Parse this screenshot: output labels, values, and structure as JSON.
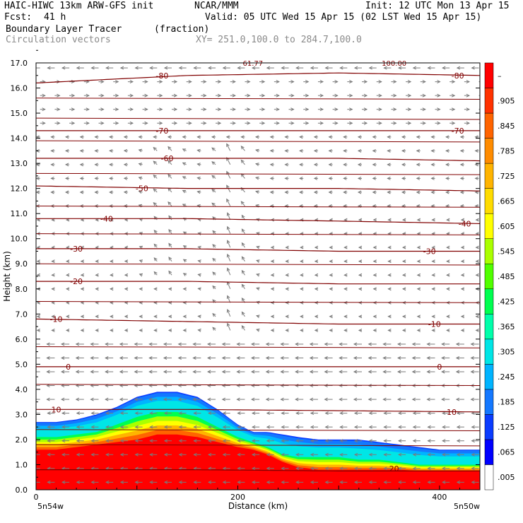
{
  "header": {
    "model": "HAIC-HIWC 13km ARW-GFS init",
    "org": "NCAR/MMM",
    "init": "Init: 12 UTC Mon 13 Apr 15",
    "fcst_label": "Fcst:",
    "fcst_value": "41 h",
    "valid": "Valid: 05 UTC Wed 15 Apr 15 (02 LST Wed 15 Apr 15)",
    "field": "Boundary Layer Tracer",
    "field_units": "(fraction)",
    "overlay": "Circulation vectors",
    "xy": "XY= 251.0,100.0 to 284.7,100.0"
  },
  "chart_data": {
    "type": "heatmap",
    "xlabel": "Distance (km)",
    "ylabel": "Height (km)",
    "xlim": [
      0,
      440
    ],
    "ylim": [
      0,
      17
    ],
    "x_ticks": [
      0,
      200,
      400
    ],
    "y_ticks": [
      "0.0",
      "1.0",
      "2.0",
      "3.0",
      "4.0",
      "5.0",
      "6.0",
      "7.0",
      "8.0",
      "9.0",
      "10.0",
      "11.0",
      "12.0",
      "13.0",
      "14.0",
      "15.0",
      "16.0",
      "17.0"
    ],
    "x_end_labels": {
      "left": "5n54w",
      "right": "5n50w"
    },
    "colorbar": {
      "labels": [
        ".005",
        ".065",
        ".125",
        ".185",
        ".245",
        ".305",
        ".365",
        ".425",
        ".485",
        ".545",
        ".605",
        ".665",
        ".725",
        ".785",
        ".845",
        ".905",
        "–"
      ],
      "colors": [
        "#ffffff",
        "#0000ff",
        "#0a3cff",
        "#1478ff",
        "#00b4ff",
        "#00e6e6",
        "#00ffaa",
        "#00ff50",
        "#50ff00",
        "#aaff00",
        "#ffff00",
        "#ffdc00",
        "#ffb400",
        "#ff8c00",
        "#ff6400",
        "#ff3200",
        "#ff0000"
      ]
    },
    "tracer_top_km": {
      "x": [
        0,
        20,
        40,
        60,
        80,
        100,
        120,
        140,
        160,
        180,
        200,
        215,
        230,
        245,
        260,
        280,
        300,
        320,
        340,
        360,
        380,
        400,
        420,
        440
      ],
      "top": [
        2.7,
        2.7,
        2.8,
        3.0,
        3.3,
        3.7,
        3.9,
        3.9,
        3.7,
        3.2,
        2.6,
        2.3,
        2.3,
        2.2,
        2.1,
        2.0,
        2.0,
        2.0,
        1.9,
        1.8,
        1.7,
        1.6,
        1.6,
        1.6
      ],
      "mid": [
        2.1,
        2.1,
        2.2,
        2.3,
        2.6,
        2.9,
        3.1,
        3.1,
        2.9,
        2.5,
        2.1,
        1.9,
        1.7,
        1.4,
        1.3,
        1.3,
        1.3,
        1.2,
        1.2,
        1.1,
        1.0,
        1.0,
        1.0,
        1.0
      ],
      "red": [
        1.6,
        1.6,
        1.7,
        1.8,
        1.9,
        2.0,
        2.2,
        2.2,
        2.1,
        1.9,
        1.7,
        1.6,
        1.4,
        1.1,
        0.9,
        0.8,
        0.8,
        0.8,
        0.8,
        0.8,
        0.75,
        0.75,
        0.75,
        0.75
      ]
    },
    "temperature_contours_C": [
      {
        "label": "20",
        "y": [
          0.8,
          0.8,
          0.75,
          0.75
        ]
      },
      {
        "label": "10",
        "y": [
          3.2,
          3.2,
          3.15,
          3.1
        ]
      },
      {
        "label": "0",
        "y": [
          4.9,
          4.9,
          4.9,
          4.9
        ]
      },
      {
        "label": "-10",
        "y": [
          6.8,
          6.7,
          6.6,
          6.6
        ]
      },
      {
        "label": "-20",
        "y": [
          8.3,
          8.3,
          8.2,
          8.2
        ]
      },
      {
        "label": "-30",
        "y": [
          9.6,
          9.6,
          9.5,
          9.5
        ]
      },
      {
        "label": "-40",
        "y": [
          10.8,
          10.8,
          10.7,
          10.6
        ]
      },
      {
        "label": "-50",
        "y": [
          12.1,
          12.0,
          12.0,
          11.9
        ]
      },
      {
        "label": "-60",
        "y": [
          13.2,
          13.2,
          13.2,
          13.1
        ]
      },
      {
        "label": "-70",
        "y": [
          14.3,
          14.3,
          14.3,
          14.3
        ]
      },
      {
        "label": "-80",
        "y": [
          16.2,
          16.5,
          16.6,
          16.5
        ]
      }
    ],
    "contour_x": [
      0,
      150,
      300,
      440
    ],
    "contour_label_positions": [
      {
        "label": "-80",
        "x": 125,
        "y": 16.5
      },
      {
        "label": "-80",
        "x": 418,
        "y": 16.5
      },
      {
        "label": "-70",
        "x": 125,
        "y": 14.3
      },
      {
        "label": "-70",
        "x": 418,
        "y": 14.3
      },
      {
        "label": "-60",
        "x": 130,
        "y": 13.2
      },
      {
        "label": "-50",
        "x": 105,
        "y": 12.0
      },
      {
        "label": "-40",
        "x": 70,
        "y": 10.8
      },
      {
        "label": "-40",
        "x": 425,
        "y": 10.6
      },
      {
        "label": "-30",
        "x": 40,
        "y": 9.6
      },
      {
        "label": "-30",
        "x": 390,
        "y": 9.5
      },
      {
        "label": "-20",
        "x": 40,
        "y": 8.3
      },
      {
        "label": "-10",
        "x": 20,
        "y": 6.8
      },
      {
        "label": "-10",
        "x": 395,
        "y": 6.6
      },
      {
        "label": "0",
        "x": 32,
        "y": 4.9
      },
      {
        "label": "0",
        "x": 400,
        "y": 4.9
      },
      {
        "label": "10",
        "x": 20,
        "y": 3.2
      },
      {
        "label": "10",
        "x": 412,
        "y": 3.1
      },
      {
        "label": "20",
        "x": 355,
        "y": 0.85
      }
    ],
    "top_labels": [
      {
        "label": "61.77",
        "x": 215
      },
      {
        "label": "100.00",
        "x": 355
      }
    ]
  }
}
